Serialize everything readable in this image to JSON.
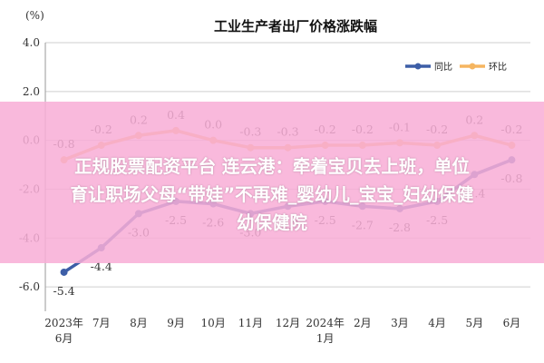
{
  "chart_data": {
    "type": "line",
    "title": "工业生产者出厂价格涨跌幅",
    "unit_label": "(%)",
    "categories": [
      [
        "2023年",
        "6月"
      ],
      [
        "7月"
      ],
      [
        "8月"
      ],
      [
        "9月"
      ],
      [
        "10月"
      ],
      [
        "11月"
      ],
      [
        "12月"
      ],
      [
        "2024年",
        "1月"
      ],
      [
        "2月"
      ],
      [
        "3月"
      ],
      [
        "4月"
      ],
      [
        "5月"
      ],
      [
        "6月"
      ]
    ],
    "ylim": [
      -7.0,
      4.0
    ],
    "yticks": [
      4.0,
      2.0,
      0.0,
      -2.0,
      -4.0,
      -6.0
    ],
    "ytick_labels": [
      "4.0",
      "2.0",
      "0.0",
      "-2.0",
      "-4.0",
      "-6.0"
    ],
    "grid": true,
    "legend_position": "top-right",
    "series": [
      {
        "name": "同比",
        "color": "#3d5ea7",
        "values": [
          -5.4,
          -4.4,
          -3.0,
          -2.5,
          -2.6,
          -3.0,
          -2.7,
          -2.5,
          -2.7,
          -2.8,
          -2.5,
          -1.4,
          -0.8
        ],
        "labels": [
          "-5.4",
          "-4.4",
          "-3.0",
          "-2.5",
          "-2.6",
          "-3.0",
          "-2.7",
          "-2.5",
          "-2.7",
          "-2.8",
          "-2.5",
          "-1.4",
          "-0.8"
        ],
        "label_side": "below"
      },
      {
        "name": "环比",
        "color": "#f5b560",
        "values": [
          -0.8,
          -0.2,
          0.2,
          0.4,
          0.0,
          -0.3,
          -0.3,
          -0.2,
          -0.2,
          -0.1,
          -0.2,
          0.2,
          -0.2
        ],
        "labels": [
          "-0.8",
          "-0.2",
          "0.2",
          "0.4",
          "0.0",
          "-0.3",
          "-0.3",
          "-0.2",
          "-0.2",
          "-0.1",
          "-0.2",
          "0.2",
          "-0.2"
        ],
        "label_side": "above"
      }
    ]
  },
  "overlay": {
    "line1": "正规股票配资平台 连云港：牵着宝贝去上班，单位",
    "line2": "育让职场父母“带娃”不再难_婴幼儿_宝宝_妇幼保健",
    "line3": "幼保健院"
  }
}
